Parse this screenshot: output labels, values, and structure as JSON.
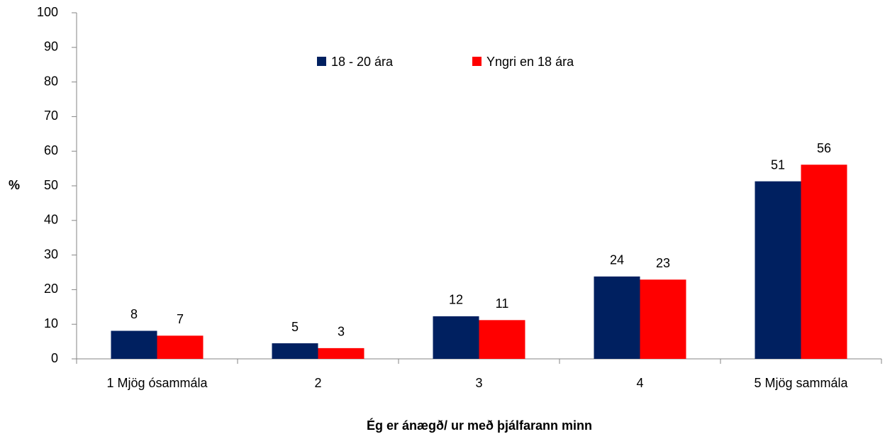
{
  "chart_data": {
    "type": "bar",
    "xlabel": "Ég er ánægð/ ur með þjálfarann minn",
    "ylabel": "%",
    "categories": [
      "1 Mjög ósammála",
      "2",
      "3",
      "4",
      "5 Mjög sammála"
    ],
    "series": [
      {
        "name": "18 - 20 ára",
        "color": "#002060",
        "values": [
          8.1,
          4.5,
          12.3,
          23.8,
          51.3
        ],
        "value_labels": [
          "8",
          "5",
          "12",
          "24",
          "51"
        ]
      },
      {
        "name": "Yngri en 18 ára",
        "color": "#ff0000",
        "values": [
          6.7,
          3.1,
          11.2,
          22.9,
          56.1
        ],
        "value_labels": [
          "7",
          "3",
          "11",
          "23",
          "56"
        ]
      }
    ],
    "ylim": [
      0,
      100
    ],
    "yticks": [
      0,
      10,
      20,
      30,
      40,
      50,
      60,
      70,
      80,
      90,
      100
    ],
    "grid": false,
    "legend": "top"
  }
}
